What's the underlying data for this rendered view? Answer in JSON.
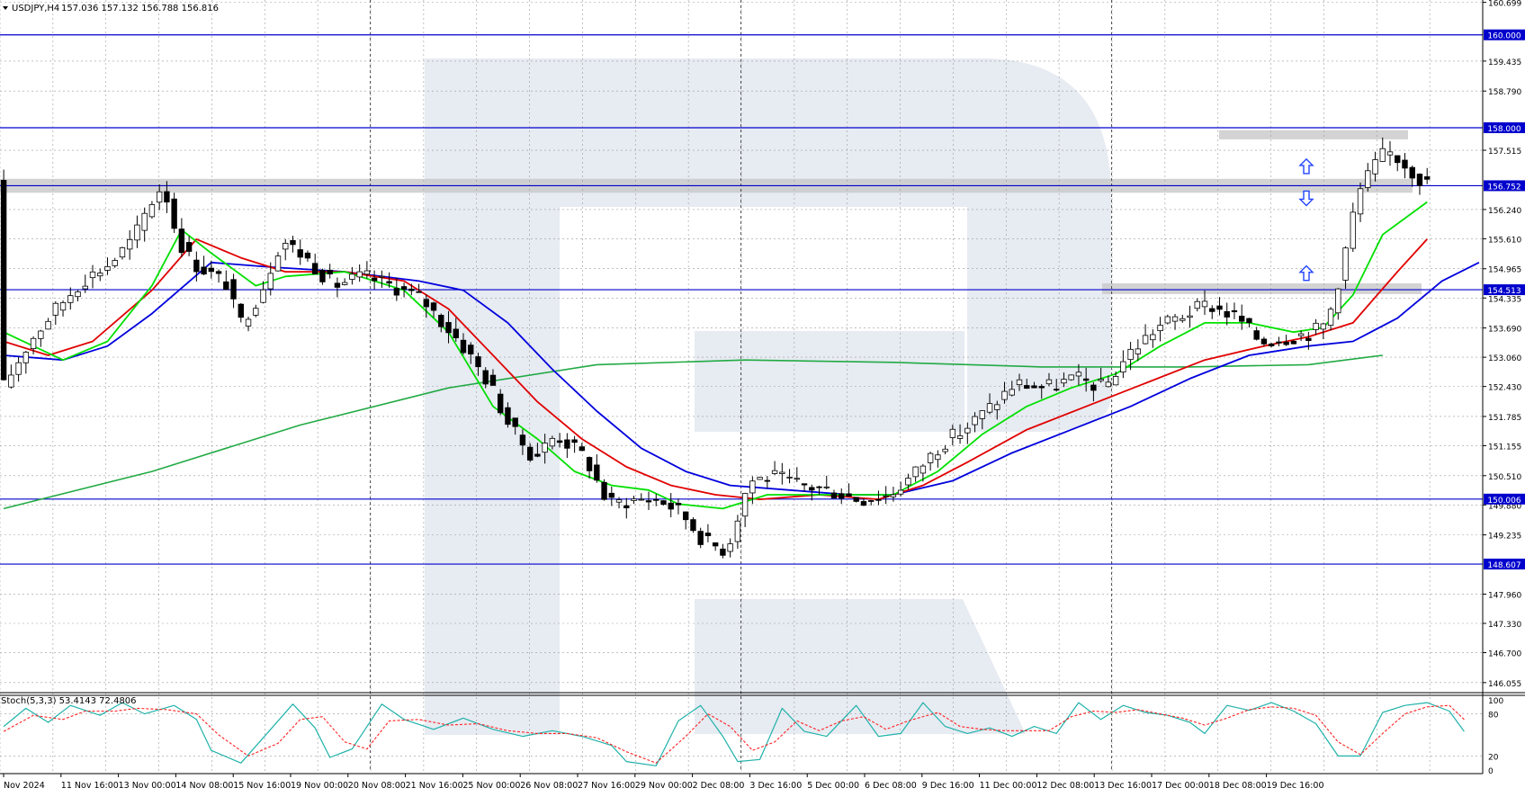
{
  "header": {
    "symbol": "USDJPY,H4",
    "ohlc": "157.036 157.132 156.788 156.816"
  },
  "stoch_header": "Stoch(5,3,3) 53.4143 72.4806",
  "colors": {
    "background": "#ffffff",
    "grid": "#9a9a9a",
    "level_line": "#0000cc",
    "level_box": "#0000cc",
    "bull_candle": "#ffffff",
    "bear_candle": "#000000",
    "ma_green": "#00e000",
    "ma_red": "#e00000",
    "ma_blue": "#0000dd",
    "ma_long": "#22aa44",
    "stoch_main": "#20b2aa",
    "stoch_signal": "#ff2020",
    "arrow": "#2244ff",
    "zone": "#c8c8c8",
    "watermark": "#dfe4ee"
  },
  "chart_data": [
    {
      "type": "candlestick",
      "ylim": [
        145.8,
        160.75
      ],
      "y_ticks": [
        "160.699",
        "160.000",
        "159.435",
        "158.790",
        "158.000",
        "157.515",
        "156.752",
        "156.240",
        "155.610",
        "154.965",
        "154.513",
        "154.335",
        "153.690",
        "153.060",
        "152.430",
        "151.785",
        "151.155",
        "150.510",
        "150.006",
        "149.880",
        "149.235",
        "148.607",
        "147.960",
        "147.330",
        "146.700",
        "146.055"
      ],
      "x_labels": [
        "Nov 2024",
        "11 Nov 16:00",
        "13 Nov 00:00",
        "14 Nov 08:00",
        "15 Nov 16:00",
        "19 Nov 00:00",
        "20 Nov 08:00",
        "21 Nov 16:00",
        "25 Nov 00:00",
        "26 Nov 08:00",
        "27 Nov 16:00",
        "29 Nov 00:00",
        "2 Dec 08:00",
        "3 Dec 16:00",
        "5 Dec 00:00",
        "6 Dec 08:00",
        "9 Dec 16:00",
        "11 Dec 00:00",
        "12 Dec 08:00",
        "13 Dec 16:00",
        "17 Dec 00:00",
        "18 Dec 08:00",
        "19 Dec 16:00"
      ],
      "horizontal_levels": [
        {
          "price": 160.0,
          "label": "160.000"
        },
        {
          "price": 158.0,
          "label": "158.000"
        },
        {
          "price": 156.752,
          "label": "156.752"
        },
        {
          "price": 154.513,
          "label": "154.513"
        },
        {
          "price": 150.006,
          "label": "150.006"
        },
        {
          "price": 148.607,
          "label": "148.607"
        }
      ],
      "price_path": [
        [
          0,
          152.3
        ],
        [
          4,
          153.4
        ],
        [
          7,
          154.0
        ],
        [
          11,
          154.7
        ],
        [
          15,
          155.1
        ],
        [
          18,
          155.6
        ],
        [
          20,
          156.3
        ],
        [
          22,
          156.8
        ],
        [
          24,
          155.6
        ],
        [
          26,
          155.1
        ],
        [
          28,
          154.9
        ],
        [
          31,
          154.6
        ],
        [
          32,
          153.7
        ],
        [
          35,
          154.4
        ],
        [
          38,
          155.6
        ],
        [
          42,
          155.1
        ],
        [
          45,
          154.6
        ],
        [
          49,
          154.8
        ],
        [
          53,
          154.6
        ],
        [
          57,
          154.3
        ],
        [
          62,
          153.4
        ],
        [
          66,
          152.5
        ],
        [
          69,
          151.5
        ],
        [
          72,
          150.9
        ],
        [
          75,
          151.4
        ],
        [
          79,
          150.9
        ],
        [
          82,
          149.9
        ],
        [
          86,
          150.0
        ],
        [
          89,
          150.0
        ],
        [
          92,
          149.7
        ],
        [
          95,
          149.1
        ],
        [
          98,
          148.9
        ],
        [
          101,
          150.4
        ],
        [
          104,
          150.5
        ],
        [
          108,
          150.3
        ],
        [
          112,
          150.2
        ],
        [
          116,
          150.0
        ],
        [
          120,
          150.1
        ],
        [
          123,
          150.5
        ],
        [
          127,
          151.2
        ],
        [
          130,
          151.5
        ],
        [
          133,
          151.9
        ],
        [
          137,
          152.5
        ],
        [
          141,
          152.4
        ],
        [
          145,
          152.6
        ],
        [
          149,
          152.4
        ],
        [
          152,
          153.1
        ],
        [
          156,
          153.7
        ],
        [
          160,
          154.0
        ],
        [
          163,
          154.2
        ],
        [
          167,
          153.9
        ],
        [
          170,
          153.4
        ],
        [
          174,
          153.5
        ],
        [
          177,
          153.6
        ],
        [
          179,
          153.8
        ],
        [
          181,
          155.0
        ],
        [
          183,
          156.5
        ],
        [
          185,
          157.1
        ],
        [
          187,
          157.5
        ],
        [
          189,
          157.3
        ],
        [
          191,
          157.0
        ],
        [
          192,
          156.8
        ]
      ],
      "ma_green": [
        [
          0,
          153.6
        ],
        [
          8,
          153.0
        ],
        [
          14,
          153.4
        ],
        [
          20,
          154.6
        ],
        [
          24,
          155.8
        ],
        [
          28,
          155.3
        ],
        [
          34,
          154.6
        ],
        [
          38,
          154.8
        ],
        [
          46,
          154.9
        ],
        [
          54,
          154.5
        ],
        [
          60,
          153.6
        ],
        [
          66,
          152.0
        ],
        [
          72,
          151.3
        ],
        [
          77,
          150.6
        ],
        [
          82,
          150.3
        ],
        [
          87,
          150.2
        ],
        [
          91,
          149.9
        ],
        [
          97,
          149.8
        ],
        [
          103,
          150.1
        ],
        [
          110,
          150.1
        ],
        [
          116,
          150.1
        ],
        [
          120,
          150.1
        ],
        [
          126,
          150.6
        ],
        [
          132,
          151.4
        ],
        [
          138,
          152.0
        ],
        [
          144,
          152.4
        ],
        [
          150,
          152.7
        ],
        [
          156,
          153.3
        ],
        [
          162,
          153.8
        ],
        [
          168,
          153.8
        ],
        [
          174,
          153.6
        ],
        [
          178,
          153.7
        ],
        [
          182,
          154.4
        ],
        [
          186,
          155.7
        ],
        [
          192,
          156.4
        ]
      ],
      "ma_red": [
        [
          0,
          153.4
        ],
        [
          6,
          153.1
        ],
        [
          12,
          153.4
        ],
        [
          20,
          154.5
        ],
        [
          26,
          155.6
        ],
        [
          32,
          155.2
        ],
        [
          38,
          154.9
        ],
        [
          46,
          154.9
        ],
        [
          54,
          154.7
        ],
        [
          60,
          154.1
        ],
        [
          66,
          153.1
        ],
        [
          72,
          152.1
        ],
        [
          78,
          151.3
        ],
        [
          84,
          150.7
        ],
        [
          90,
          150.3
        ],
        [
          96,
          150.1
        ],
        [
          102,
          150.0
        ],
        [
          110,
          150.1
        ],
        [
          118,
          150.0
        ],
        [
          124,
          150.3
        ],
        [
          130,
          150.8
        ],
        [
          138,
          151.5
        ],
        [
          146,
          152.0
        ],
        [
          154,
          152.5
        ],
        [
          162,
          153.0
        ],
        [
          170,
          153.3
        ],
        [
          176,
          153.5
        ],
        [
          182,
          153.8
        ],
        [
          188,
          154.9
        ],
        [
          192,
          155.6
        ]
      ],
      "ma_blue": [
        [
          0,
          153.1
        ],
        [
          8,
          153.0
        ],
        [
          14,
          153.3
        ],
        [
          20,
          154.0
        ],
        [
          28,
          155.1
        ],
        [
          36,
          155.0
        ],
        [
          46,
          154.9
        ],
        [
          56,
          154.7
        ],
        [
          62,
          154.5
        ],
        [
          68,
          153.8
        ],
        [
          74,
          152.8
        ],
        [
          80,
          151.9
        ],
        [
          86,
          151.1
        ],
        [
          92,
          150.6
        ],
        [
          98,
          150.3
        ],
        [
          106,
          150.2
        ],
        [
          114,
          150.1
        ],
        [
          120,
          150.1
        ],
        [
          128,
          150.4
        ],
        [
          136,
          151.0
        ],
        [
          144,
          151.5
        ],
        [
          152,
          152.0
        ],
        [
          160,
          152.6
        ],
        [
          168,
          153.1
        ],
        [
          176,
          153.3
        ],
        [
          182,
          153.4
        ],
        [
          188,
          153.9
        ],
        [
          194,
          154.7
        ],
        [
          199,
          155.1
        ]
      ],
      "ma_long": [
        [
          0,
          149.8
        ],
        [
          20,
          150.6
        ],
        [
          40,
          151.6
        ],
        [
          60,
          152.4
        ],
        [
          80,
          152.9
        ],
        [
          100,
          153.0
        ],
        [
          120,
          152.95
        ],
        [
          140,
          152.85
        ],
        [
          160,
          152.85
        ],
        [
          176,
          152.9
        ],
        [
          186,
          153.1
        ]
      ],
      "stoch_main": [
        [
          0,
          62
        ],
        [
          3,
          88
        ],
        [
          6,
          68
        ],
        [
          9,
          92
        ],
        [
          13,
          78
        ],
        [
          16,
          96
        ],
        [
          19,
          80
        ],
        [
          23,
          92
        ],
        [
          26,
          72
        ],
        [
          28,
          28
        ],
        [
          32,
          10
        ],
        [
          36,
          58
        ],
        [
          39,
          94
        ],
        [
          42,
          60
        ],
        [
          44,
          18
        ],
        [
          47,
          30
        ],
        [
          51,
          94
        ],
        [
          54,
          72
        ],
        [
          58,
          58
        ],
        [
          62,
          74
        ],
        [
          66,
          58
        ],
        [
          70,
          48
        ],
        [
          74,
          56
        ],
        [
          78,
          48
        ],
        [
          82,
          35
        ],
        [
          84,
          12
        ],
        [
          88,
          6
        ],
        [
          91,
          70
        ],
        [
          94,
          92
        ],
        [
          97,
          48
        ],
        [
          99,
          12
        ],
        [
          102,
          15
        ],
        [
          105,
          88
        ],
        [
          108,
          55
        ],
        [
          111,
          48
        ],
        [
          115,
          92
        ],
        [
          118,
          48
        ],
        [
          121,
          52
        ],
        [
          124,
          96
        ],
        [
          127,
          62
        ],
        [
          130,
          52
        ],
        [
          133,
          60
        ],
        [
          136,
          48
        ],
        [
          139,
          62
        ],
        [
          142,
          52
        ],
        [
          145,
          96
        ],
        [
          148,
          72
        ],
        [
          151,
          92
        ],
        [
          154,
          82
        ],
        [
          157,
          78
        ],
        [
          160,
          68
        ],
        [
          162,
          52
        ],
        [
          165,
          92
        ],
        [
          168,
          85
        ],
        [
          171,
          96
        ],
        [
          174,
          84
        ],
        [
          177,
          66
        ],
        [
          180,
          20
        ],
        [
          183,
          20
        ],
        [
          186,
          82
        ],
        [
          189,
          92
        ],
        [
          192,
          96
        ],
        [
          195,
          84
        ],
        [
          197,
          55
        ]
      ],
      "stoch_signal": [
        [
          0,
          55
        ],
        [
          4,
          78
        ],
        [
          8,
          72
        ],
        [
          11,
          84
        ],
        [
          15,
          84
        ],
        [
          18,
          88
        ],
        [
          22,
          86
        ],
        [
          26,
          80
        ],
        [
          29,
          50
        ],
        [
          33,
          20
        ],
        [
          37,
          38
        ],
        [
          40,
          72
        ],
        [
          43,
          76
        ],
        [
          46,
          40
        ],
        [
          49,
          30
        ],
        [
          52,
          70
        ],
        [
          56,
          72
        ],
        [
          60,
          64
        ],
        [
          64,
          66
        ],
        [
          68,
          56
        ],
        [
          72,
          52
        ],
        [
          76,
          52
        ],
        [
          80,
          46
        ],
        [
          84,
          26
        ],
        [
          88,
          10
        ],
        [
          92,
          48
        ],
        [
          95,
          80
        ],
        [
          98,
          62
        ],
        [
          101,
          28
        ],
        [
          104,
          40
        ],
        [
          107,
          70
        ],
        [
          110,
          56
        ],
        [
          113,
          70
        ],
        [
          116,
          76
        ],
        [
          119,
          58
        ],
        [
          122,
          70
        ],
        [
          126,
          82
        ],
        [
          129,
          62
        ],
        [
          132,
          58
        ],
        [
          135,
          56
        ],
        [
          138,
          56
        ],
        [
          141,
          56
        ],
        [
          144,
          76
        ],
        [
          147,
          84
        ],
        [
          150,
          82
        ],
        [
          153,
          86
        ],
        [
          156,
          80
        ],
        [
          159,
          74
        ],
        [
          162,
          64
        ],
        [
          165,
          74
        ],
        [
          168,
          86
        ],
        [
          171,
          90
        ],
        [
          174,
          88
        ],
        [
          177,
          78
        ],
        [
          180,
          40
        ],
        [
          183,
          22
        ],
        [
          186,
          52
        ],
        [
          189,
          80
        ],
        [
          192,
          90
        ],
        [
          195,
          92
        ],
        [
          197,
          72
        ]
      ]
    }
  ]
}
